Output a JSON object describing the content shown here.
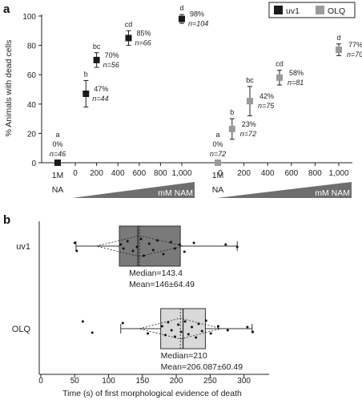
{
  "panels": {
    "a_label": "a",
    "b_label": "b"
  },
  "chart_data": [
    {
      "type": "scatter",
      "panel": "a",
      "ylabel": "% Animals with dead cells",
      "ylim": [
        0,
        105
      ],
      "yticks": [
        "0",
        "20",
        "40",
        "60",
        "80",
        "100"
      ],
      "xticks": [
        "0",
        "200",
        "400",
        "600",
        "800",
        "1,000"
      ],
      "na_label": "1M\nNA",
      "nam_label": "mM NAM",
      "legend": [
        {
          "name": "uv1",
          "color": "#1a1a1a"
        },
        {
          "name": "OLQ",
          "color": "#9a9a9a"
        }
      ],
      "series": [
        {
          "name": "uv1",
          "color": "#1a1a1a",
          "na_point": {
            "value": 0,
            "sig": "a",
            "pct": "0%",
            "n": "n=46"
          },
          "points": [
            {
              "x": 100,
              "y": 47,
              "err": 9,
              "sig": "b",
              "pct": "47%",
              "n": "n=44"
            },
            {
              "x": 200,
              "y": 70,
              "err": 5,
              "sig": "bc",
              "pct": "70%",
              "n": "n=56"
            },
            {
              "x": 500,
              "y": 85,
              "err": 5,
              "sig": "cd",
              "pct": "85%",
              "n": "n=66"
            },
            {
              "x": 1000,
              "y": 98,
              "err": 3,
              "sig": "d",
              "pct": "98%",
              "n": "n=104"
            }
          ]
        },
        {
          "name": "OLQ",
          "color": "#9a9a9a",
          "na_point": {
            "value": 0,
            "sig": "a",
            "pct": "0%",
            "n": "n=72"
          },
          "points": [
            {
              "x": 100,
              "y": 23,
              "err": 7,
              "sig": "b",
              "pct": "23%",
              "n": "n=72"
            },
            {
              "x": 250,
              "y": 42,
              "err": 10,
              "sig": "bc",
              "pct": "42%",
              "n": "n=75"
            },
            {
              "x": 500,
              "y": 58,
              "err": 5,
              "sig": "cd",
              "pct": "58%",
              "n": "n=81"
            },
            {
              "x": 1000,
              "y": 77,
              "err": 4,
              "sig": "d",
              "pct": "77%",
              "n": "n=70"
            }
          ]
        }
      ]
    },
    {
      "type": "boxplot",
      "panel": "b",
      "xlabel": "Time (s) of first morphological evidence of death",
      "xlim": [
        0,
        330
      ],
      "xticks": [
        "0",
        "50",
        "100",
        "150",
        "200",
        "250",
        "300"
      ],
      "rows": [
        {
          "name": "uv1",
          "fill": "#7a7a7a",
          "whisker_low": 52,
          "q1": 116,
          "median": 143.4,
          "mean": 146,
          "sd": 64.49,
          "q3": 206,
          "whisker_high": 290,
          "median_text": "Median=143.4",
          "mean_text": "Mean=146±64.49",
          "points": [
            {
              "x": 50,
              "dy": -4
            },
            {
              "x": 53,
              "dy": 6
            },
            {
              "x": 118,
              "dy": -2
            },
            {
              "x": 122,
              "dy": 3
            },
            {
              "x": 128,
              "dy": -6
            },
            {
              "x": 136,
              "dy": 6
            },
            {
              "x": 142,
              "dy": 1
            },
            {
              "x": 148,
              "dy": -9
            },
            {
              "x": 152,
              "dy": 12
            },
            {
              "x": 160,
              "dy": -3
            },
            {
              "x": 166,
              "dy": 5
            },
            {
              "x": 172,
              "dy": -7
            },
            {
              "x": 181,
              "dy": 10
            },
            {
              "x": 192,
              "dy": -5
            },
            {
              "x": 198,
              "dy": 3
            },
            {
              "x": 205,
              "dy": -2
            },
            {
              "x": 212,
              "dy": 7
            },
            {
              "x": 226,
              "dy": -4
            },
            {
              "x": 273,
              "dy": -2
            },
            {
              "x": 290,
              "dy": 1
            }
          ]
        },
        {
          "name": "OLQ",
          "fill": "#d9d9d9",
          "whisker_low": 118,
          "q1": 177,
          "median": 210,
          "mean": 206.087,
          "sd": 60.49,
          "q3": 243,
          "whisker_high": 312,
          "median_text": "Median=210",
          "mean_text": "Mean=206.087±60.49",
          "points": [
            {
              "x": 62,
              "dy": -9
            },
            {
              "x": 76,
              "dy": 5
            },
            {
              "x": 121,
              "dy": -7
            },
            {
              "x": 158,
              "dy": 6
            },
            {
              "x": 179,
              "dy": -3
            },
            {
              "x": 184,
              "dy": 8
            },
            {
              "x": 188,
              "dy": -8
            },
            {
              "x": 193,
              "dy": 2
            },
            {
              "x": 198,
              "dy": 10
            },
            {
              "x": 203,
              "dy": -5
            },
            {
              "x": 207,
              "dy": 4
            },
            {
              "x": 213,
              "dy": -9
            },
            {
              "x": 218,
              "dy": 7
            },
            {
              "x": 223,
              "dy": -2
            },
            {
              "x": 229,
              "dy": 11
            },
            {
              "x": 233,
              "dy": -6
            },
            {
              "x": 238,
              "dy": 3
            },
            {
              "x": 244,
              "dy": -10
            },
            {
              "x": 251,
              "dy": 6
            },
            {
              "x": 262,
              "dy": -3
            },
            {
              "x": 276,
              "dy": 2
            },
            {
              "x": 305,
              "dy": -2
            },
            {
              "x": 313,
              "dy": 4
            }
          ]
        }
      ]
    }
  ]
}
